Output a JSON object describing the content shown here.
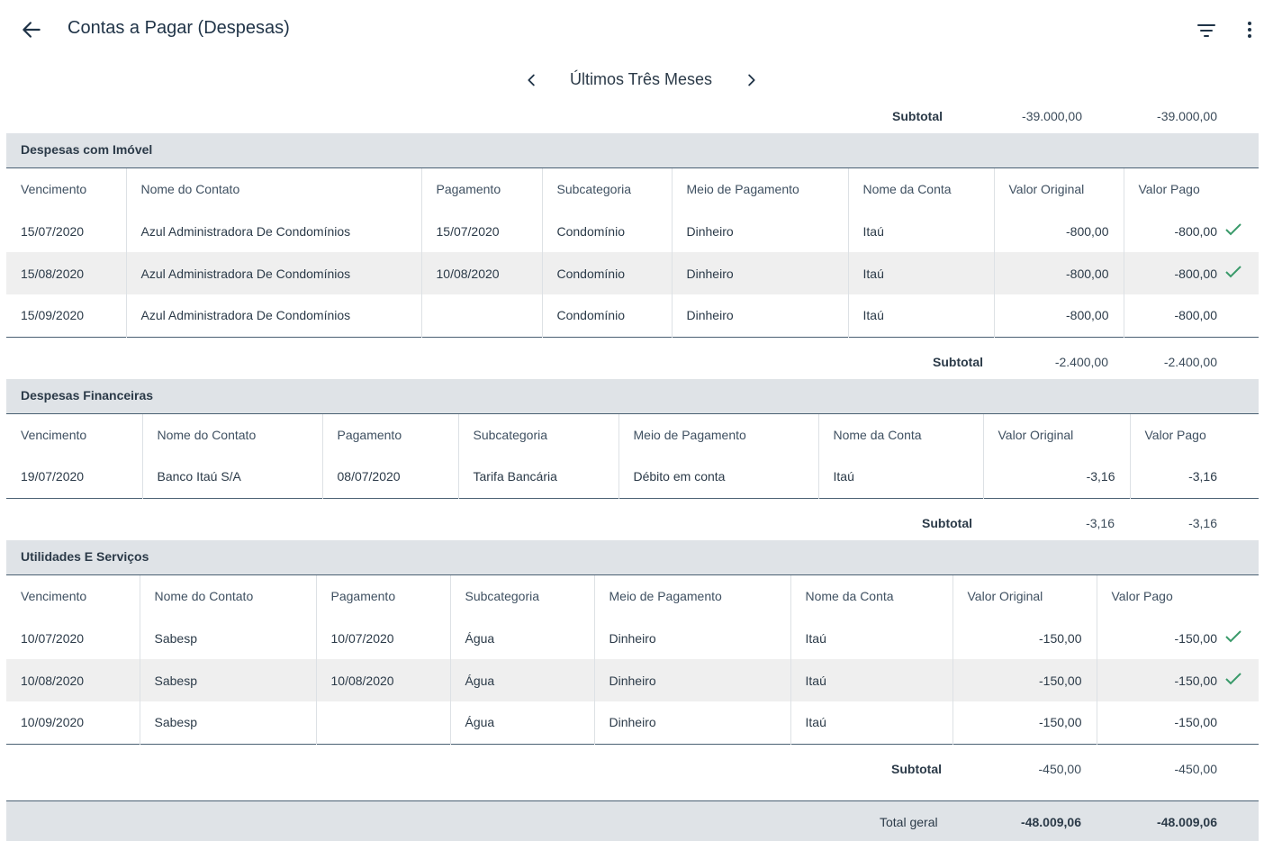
{
  "header": {
    "title": "Contas a Pagar (Despesas)"
  },
  "period": {
    "label": "Últimos Três Meses"
  },
  "top_subtotal": {
    "label": "Subtotal",
    "original": "-39.000,00",
    "pago": "-39.000,00"
  },
  "columns": {
    "vencimento": "Vencimento",
    "contato": "Nome do Contato",
    "pagamento": "Pagamento",
    "subcategoria": "Subcategoria",
    "meio": "Meio de Pagamento",
    "conta": "Nome da Conta",
    "original": "Valor Original",
    "pago": "Valor Pago"
  },
  "sections": [
    {
      "title": "Despesas com Imóvel",
      "rows": [
        {
          "vencimento": "15/07/2020",
          "contato": "Azul Administradora De Condomínios",
          "pagamento": "15/07/2020",
          "subcategoria": "Condomínio",
          "meio": "Dinheiro",
          "conta": "Itaú",
          "original": "-800,00",
          "pago": "-800,00"
        },
        {
          "vencimento": "15/08/2020",
          "contato": "Azul Administradora De Condomínios",
          "pagamento": "10/08/2020",
          "subcategoria": "Condomínio",
          "meio": "Dinheiro",
          "conta": "Itaú",
          "original": "-800,00",
          "pago": "-800,00"
        },
        {
          "vencimento": "15/09/2020",
          "contato": "Azul Administradora De Condomínios",
          "pagamento": "",
          "subcategoria": "Condomínio",
          "meio": "Dinheiro",
          "conta": "Itaú",
          "original": "-800,00",
          "pago": "-800,00"
        }
      ],
      "subtotal": {
        "label": "Subtotal",
        "original": "-2.400,00",
        "pago": "-2.400,00"
      }
    },
    {
      "title": "Despesas Financeiras",
      "rows": [
        {
          "vencimento": "19/07/2020",
          "contato": "Banco Itaú S/A",
          "pagamento": "08/07/2020",
          "subcategoria": "Tarifa Bancária",
          "meio": "Débito em conta",
          "conta": "Itaú",
          "original": "-3,16",
          "pago": "-3,16"
        }
      ],
      "subtotal": {
        "label": "Subtotal",
        "original": "-3,16",
        "pago": "-3,16"
      }
    },
    {
      "title": "Utilidades E Serviços",
      "rows": [
        {
          "vencimento": "10/07/2020",
          "contato": "Sabesp",
          "pagamento": "10/07/2020",
          "subcategoria": "Água",
          "meio": "Dinheiro",
          "conta": "Itaú",
          "original": "-150,00",
          "pago": "-150,00"
        },
        {
          "vencimento": "10/08/2020",
          "contato": "Sabesp",
          "pagamento": "10/08/2020",
          "subcategoria": "Água",
          "meio": "Dinheiro",
          "conta": "Itaú",
          "original": "-150,00",
          "pago": "-150,00"
        },
        {
          "vencimento": "10/09/2020",
          "contato": "Sabesp",
          "pagamento": "",
          "subcategoria": "Água",
          "meio": "Dinheiro",
          "conta": "Itaú",
          "original": "-150,00",
          "pago": "-150,00"
        }
      ],
      "subtotal": {
        "label": "Subtotal",
        "original": "-450,00",
        "pago": "-450,00"
      }
    }
  ],
  "total": {
    "label": "Total geral",
    "original": "-48.009,06",
    "pago": "-48.009,06"
  },
  "icons": {
    "back": "arrow-left-icon",
    "filter": "filter-icon",
    "more": "more-vertical-icon",
    "prev": "chevron-left-icon",
    "next": "chevron-right-icon",
    "paid": "check-icon"
  },
  "colors": {
    "check": "#3a9a6a",
    "section_bg": "#dfe3e7",
    "alt_row": "#efefef",
    "rule": "#4a6073"
  }
}
